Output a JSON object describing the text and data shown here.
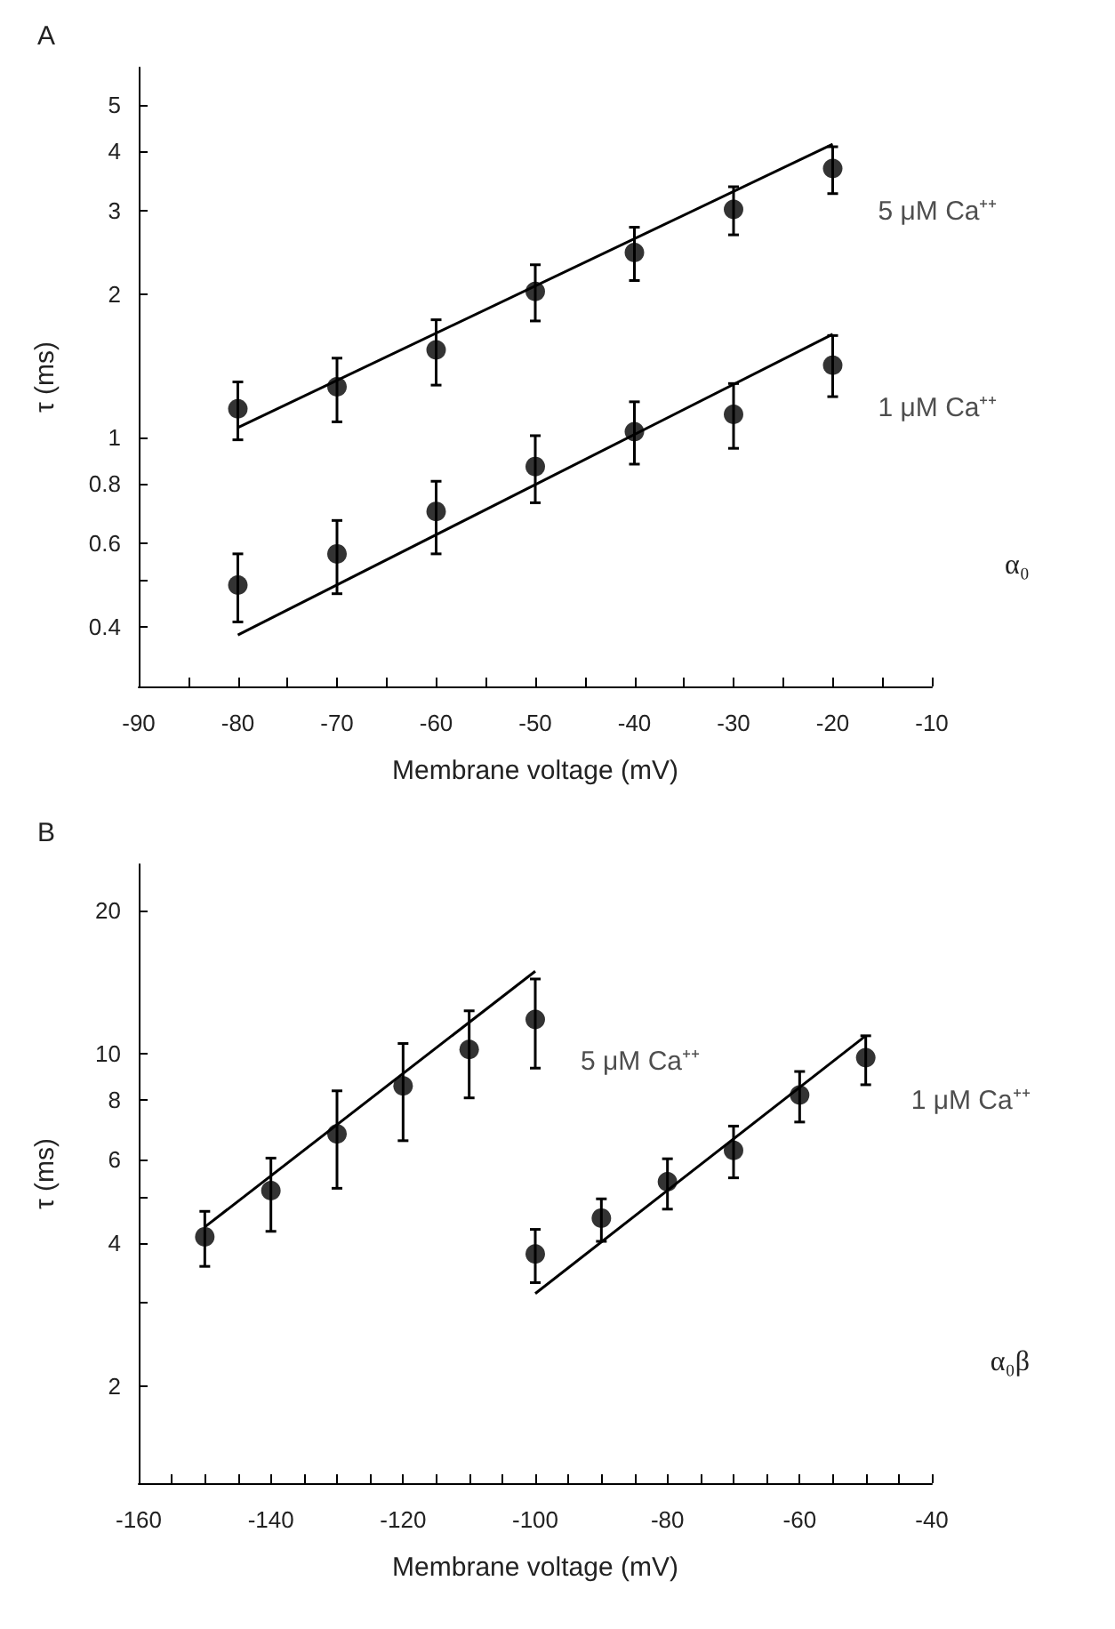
{
  "chart_data": [
    {
      "type": "scatter",
      "title": "A",
      "xlabel": "Membrane voltage (mV)",
      "ylabel": "τ (ms)",
      "log": "y",
      "marker": "circle",
      "grid": false,
      "legend": false,
      "xlim": [
        -90,
        -10
      ],
      "xticks": [
        -90,
        {
          "value": -85,
          "label": null
        },
        -80,
        {
          "value": -75,
          "label": null
        },
        -70,
        {
          "value": -65,
          "label": null
        },
        -60,
        {
          "value": -55,
          "label": null
        },
        -50,
        {
          "value": -45,
          "label": null
        },
        -40,
        {
          "value": -35,
          "label": null
        },
        -30,
        {
          "value": -25,
          "label": null
        },
        -20,
        {
          "value": -15,
          "label": null
        },
        -10
      ],
      "ylim": [
        0.3,
        6
      ],
      "yticks": [
        0.4,
        {
          "value": 0.5,
          "label": null
        },
        0.6,
        0.8,
        1,
        2,
        3,
        4,
        5
      ],
      "annotations": [
        "α₀"
      ],
      "series": [
        {
          "name": "5 μM Ca⁺⁺",
          "color": "#000000",
          "x": [
            -80,
            -70,
            -60,
            -50,
            -40,
            -30,
            -20
          ],
          "values": [
            1.15,
            1.28,
            1.53,
            2.03,
            2.45,
            3.02,
            3.68
          ],
          "errors": [
            [
              0.99,
              1.31
            ],
            [
              1.08,
              1.47
            ],
            [
              1.29,
              1.77
            ],
            [
              1.76,
              2.31
            ],
            [
              2.14,
              2.77
            ],
            [
              2.67,
              3.37
            ],
            [
              3.26,
              4.09
            ]
          ]
        },
        {
          "type": "line",
          "marker": "none",
          "color": "#000000",
          "x": [
            -80,
            -20
          ],
          "values": [
            1.05,
            4.14
          ]
        },
        {
          "name": "1 μM Ca⁺⁺",
          "color": "#000000",
          "x": [
            -80,
            -70,
            -60,
            -50,
            -40,
            -30,
            -20
          ],
          "values": [
            0.49,
            0.57,
            0.7,
            0.87,
            1.03,
            1.12,
            1.42
          ],
          "errors": [
            [
              0.41,
              0.57
            ],
            [
              0.47,
              0.67
            ],
            [
              0.57,
              0.81
            ],
            [
              0.73,
              1.01
            ],
            [
              0.88,
              1.19
            ],
            [
              0.95,
              1.3
            ],
            [
              1.22,
              1.64
            ]
          ]
        },
        {
          "type": "line",
          "marker": "none",
          "color": "#000000",
          "x": [
            -80,
            -20
          ],
          "values": [
            0.385,
            1.65
          ]
        }
      ]
    },
    {
      "type": "scatter",
      "title": "B",
      "xlabel": "Membrane voltage (mV)",
      "ylabel": "τ (ms)",
      "log": "y",
      "marker": "circle",
      "grid": false,
      "legend": false,
      "xlim": [
        -160,
        -40
      ],
      "xticks": [
        -160,
        {
          "value": -155,
          "label": null
        },
        {
          "value": -150,
          "label": null
        },
        {
          "value": -145,
          "label": null
        },
        -140,
        {
          "value": -135,
          "label": null
        },
        {
          "value": -130,
          "label": null
        },
        {
          "value": -125,
          "label": null
        },
        -120,
        {
          "value": -115,
          "label": null
        },
        {
          "value": -110,
          "label": null
        },
        {
          "value": -105,
          "label": null
        },
        -100,
        {
          "value": -95,
          "label": null
        },
        {
          "value": -90,
          "label": null
        },
        {
          "value": -85,
          "label": null
        },
        -80,
        {
          "value": -75,
          "label": null
        },
        {
          "value": -70,
          "label": null
        },
        {
          "value": -65,
          "label": null
        },
        -60,
        {
          "value": -55,
          "label": null
        },
        {
          "value": -50,
          "label": null
        },
        {
          "value": -45,
          "label": null
        },
        -40
      ],
      "ylim": [
        1.25,
        25
      ],
      "yticks": [
        2,
        {
          "value": 3,
          "label": null
        },
        4,
        {
          "value": 5,
          "label": null
        },
        6,
        8,
        10,
        20
      ],
      "annotations": [
        "α₀β"
      ],
      "series": [
        {
          "name": "5 μM Ca⁺⁺",
          "color": "#000000",
          "x": [
            -150,
            -140,
            -130,
            -120,
            -110,
            -100
          ],
          "values": [
            4.12,
            5.15,
            6.78,
            8.55,
            10.2,
            11.8
          ],
          "errors": [
            [
              3.57,
              4.66
            ],
            [
              4.23,
              6.03
            ],
            [
              5.21,
              8.35
            ],
            [
              6.56,
              10.5
            ],
            [
              8.07,
              12.3
            ],
            [
              9.32,
              14.35
            ]
          ]
        },
        {
          "type": "line",
          "marker": "none",
          "color": "#000000",
          "x": [
            -150,
            -100
          ],
          "values": [
            4.32,
            14.9
          ]
        },
        {
          "name": "1 μM Ca⁺⁺",
          "color": "#000000",
          "x": [
            -100,
            -90,
            -80,
            -70,
            -60,
            -50
          ],
          "values": [
            3.79,
            4.51,
            5.38,
            6.26,
            8.18,
            9.8
          ],
          "errors": [
            [
              3.3,
              4.27
            ],
            [
              4.03,
              4.95
            ],
            [
              4.71,
              6.01
            ],
            [
              5.48,
              7.04
            ],
            [
              7.18,
              9.17
            ],
            [
              8.6,
              10.9
            ]
          ]
        },
        {
          "type": "line",
          "marker": "none",
          "color": "#000000",
          "x": [
            -100,
            -50
          ],
          "values": [
            3.13,
            10.9
          ]
        }
      ]
    }
  ]
}
